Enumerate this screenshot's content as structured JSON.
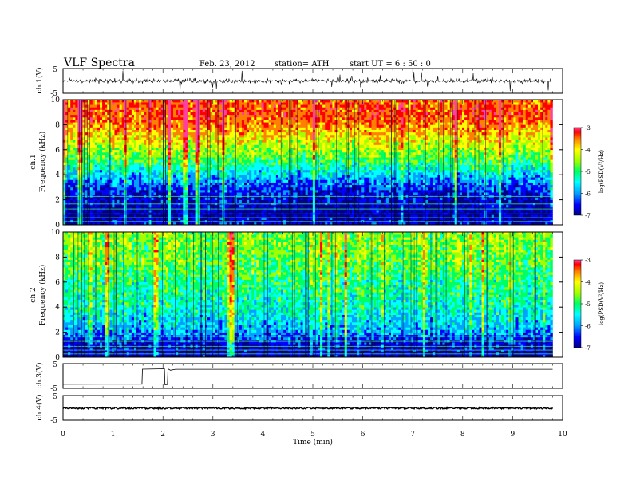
{
  "header": {
    "title": "VLF  Spectra",
    "date": "Feb. 23, 2012",
    "station": "station= ATH",
    "start": "start  UT  =   6  : 50 : 0"
  },
  "colors": {
    "axis": "#000000",
    "colormap": [
      "#000088",
      "#0000ff",
      "#00a0ff",
      "#00ffff",
      "#00ff60",
      "#a0ff00",
      "#ffff00",
      "#ff8000",
      "#ff0000",
      "#ff40a0"
    ]
  },
  "chart_data": [
    {
      "type": "line",
      "name": "ch1-waveform",
      "ylabel": "ch.1(V)",
      "ylim": [
        -5,
        5
      ],
      "yticks": [
        5,
        -5
      ],
      "xlim": [
        0,
        10
      ],
      "baseline": 0,
      "noise_amplitude": 1.3,
      "spike_amplitude": 4.5
    },
    {
      "type": "heatmap",
      "name": "ch1-spectrogram",
      "ylabel_top": "ch.1",
      "ylabel": "Frequency  (kHz)",
      "ylim": [
        0,
        10
      ],
      "yticks": [
        0,
        2,
        4,
        6,
        8,
        10
      ],
      "xlim": [
        0,
        9.8
      ],
      "colorbar": {
        "label": "log(PSD(V²/Hz)",
        "range": [
          -7,
          -3
        ],
        "ticks": [
          -3,
          -4,
          -5,
          -6,
          -7
        ]
      },
      "psd_profile": [
        {
          "f": 0,
          "v": -6.6
        },
        {
          "f": 1,
          "v": -6.8
        },
        {
          "f": 2,
          "v": -6.6
        },
        {
          "f": 3,
          "v": -6.3
        },
        {
          "f": 4,
          "v": -5.8
        },
        {
          "f": 5,
          "v": -5.2
        },
        {
          "f": 6,
          "v": -4.8
        },
        {
          "f": 7,
          "v": -4.4
        },
        {
          "f": 8,
          "v": -4.0
        },
        {
          "f": 9,
          "v": -3.8
        },
        {
          "f": 10,
          "v": -3.9
        }
      ]
    },
    {
      "type": "heatmap",
      "name": "ch2-spectrogram",
      "ylabel_top": "ch.2",
      "ylabel": "Frequency  (kHz)",
      "ylim": [
        0,
        10
      ],
      "yticks": [
        0,
        2,
        4,
        6,
        8,
        10
      ],
      "xlim": [
        0,
        9.8
      ],
      "colorbar": {
        "label": "log(PSD(V²/Hz)",
        "range": [
          -7,
          -3
        ],
        "ticks": [
          -3,
          -4,
          -5,
          -6,
          -7
        ]
      },
      "psd_profile": [
        {
          "f": 0,
          "v": -6.8
        },
        {
          "f": 1,
          "v": -6.6
        },
        {
          "f": 2,
          "v": -6.0
        },
        {
          "f": 3,
          "v": -5.7
        },
        {
          "f": 4,
          "v": -5.5
        },
        {
          "f": 5,
          "v": -5.4
        },
        {
          "f": 6,
          "v": -5.3
        },
        {
          "f": 7,
          "v": -5.1
        },
        {
          "f": 8,
          "v": -5.0
        },
        {
          "f": 9,
          "v": -4.9
        },
        {
          "f": 10,
          "v": -4.9
        }
      ]
    },
    {
      "type": "line",
      "name": "ch3-waveform",
      "ylabel": "ch.3(V)",
      "ylim": [
        -5,
        5
      ],
      "yticks": [
        5,
        -5
      ],
      "xlim": [
        0,
        10
      ],
      "points": [
        {
          "x": 0.0,
          "y": -3.2
        },
        {
          "x": 1.58,
          "y": -3.2
        },
        {
          "x": 1.59,
          "y": 2.9
        },
        {
          "x": 2.03,
          "y": 2.9
        },
        {
          "x": 2.04,
          "y": -3.5
        },
        {
          "x": 2.09,
          "y": -3.5
        },
        {
          "x": 2.1,
          "y": 2.8
        },
        {
          "x": 2.15,
          "y": 2.4
        },
        {
          "x": 2.25,
          "y": 2.7
        },
        {
          "x": 9.8,
          "y": 2.7
        }
      ]
    },
    {
      "type": "line",
      "name": "ch4-waveform",
      "ylabel": "ch.4(V)",
      "ylim": [
        -5,
        5
      ],
      "yticks": [
        5,
        -5
      ],
      "xlim": [
        0,
        10
      ],
      "baseline": -0.1,
      "noise_amplitude": 0.35
    }
  ],
  "xaxis": {
    "label": "Time  (min)",
    "ticks": [
      0,
      1,
      2,
      3,
      4,
      5,
      6,
      7,
      8,
      9,
      10
    ]
  }
}
